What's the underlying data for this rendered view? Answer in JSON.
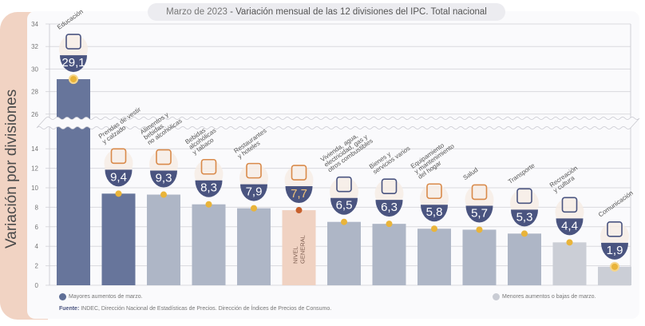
{
  "side": {
    "ylabel": "Variación por divisiones",
    "unit": "%"
  },
  "header": {
    "date": "Marzo de 2023",
    "separator": " - ",
    "title": "Variación mensual de las 12 divisiones del IPC. Total nacional"
  },
  "legend": [
    {
      "label": "Mayores aumentos de marzo.",
      "color": "#5f6f97"
    },
    {
      "label": "Menores aumentos o bajas de marzo.",
      "color": "#c9ccd4"
    }
  ],
  "source": {
    "label": "Fuente:",
    "text": " INDEC, Dirección Nacional de Estadísticas de Precios. Dirección de Índices de Precios de Consumo."
  },
  "chart_data": {
    "type": "bar",
    "title": "Marzo de 2023 - Variación mensual de las 12 divisiones del IPC. Total nacional",
    "xlabel": "",
    "ylabel": "Variación por divisiones (%)",
    "ylim": [
      0,
      34
    ],
    "axis_break": [
      14,
      26
    ],
    "yticks": [
      0,
      2,
      4,
      6,
      8,
      10,
      12,
      14,
      26,
      28,
      30,
      32,
      34
    ],
    "grid": true,
    "categories": [
      "Educación",
      "Prendas de vestir y calzado",
      "Alimentos y bebidas no alcohólicas",
      "Bebidas alcohólicas y tabaco",
      "Restaurantes y hoteles",
      "Nivel general",
      "Vivienda, agua, electricidad, gas y otros combustibles",
      "Bienes y servicios varios",
      "Equipamiento y mantenimiento del hogar",
      "Salud",
      "Transporte",
      "Recreación y cultura",
      "Comunicación"
    ],
    "labels": [
      "Educación",
      "Prendas de vestir|y calzado",
      "Alimentos y|bebidas|no alcohólicas",
      "Bebidas|alcohólicas|y tabaco",
      "Restaurantes|y hoteles",
      "",
      "Vivienda, agua,|electricidad, gas y|otros combustibles",
      "Bienes y|servicios varios",
      "Equipamiento|y mantenimiento|del hogar",
      "Salud",
      "Transporte",
      "Recreación|y cultura",
      "Comunicación"
    ],
    "values": [
      29.1,
      9.4,
      9.3,
      8.3,
      7.9,
      7.7,
      6.5,
      6.3,
      5.8,
      5.7,
      5.3,
      4.4,
      1.9
    ],
    "display_values": [
      "29,1",
      "9,4",
      "9,3",
      "8,3",
      "7,9",
      "7,7",
      "6,5",
      "6,3",
      "5,8",
      "5,7",
      "5,3",
      "4,4",
      "1,9"
    ],
    "groups": [
      "mayor",
      "mayor",
      "menor",
      "menor",
      "menor",
      "general",
      "menor",
      "menor",
      "menor",
      "menor",
      "menor",
      "menor",
      "menor"
    ],
    "icons": [
      "book-icon",
      "clothing-icon",
      "food-icon",
      "bottle-icon",
      "plate-icon",
      "basket-icon",
      "lightbulb-icon",
      "comb-icon",
      "washing-machine-icon",
      "medical-cross-icon",
      "car-icon",
      "umbrella-icon",
      "phone-icon"
    ],
    "nivel_general_label": "NIVEL|GENERAL",
    "colors": {
      "mayor": "#67759b",
      "menor_dark": "#aeb6c6",
      "menor_light": "#cbced6",
      "general": "#f0d2c2",
      "badge": "#4a5480",
      "badge_general_text": "#f0c27a",
      "dot": "#e9b43a",
      "dot_general": "#c8602c",
      "icon": "#d98a4a"
    }
  }
}
